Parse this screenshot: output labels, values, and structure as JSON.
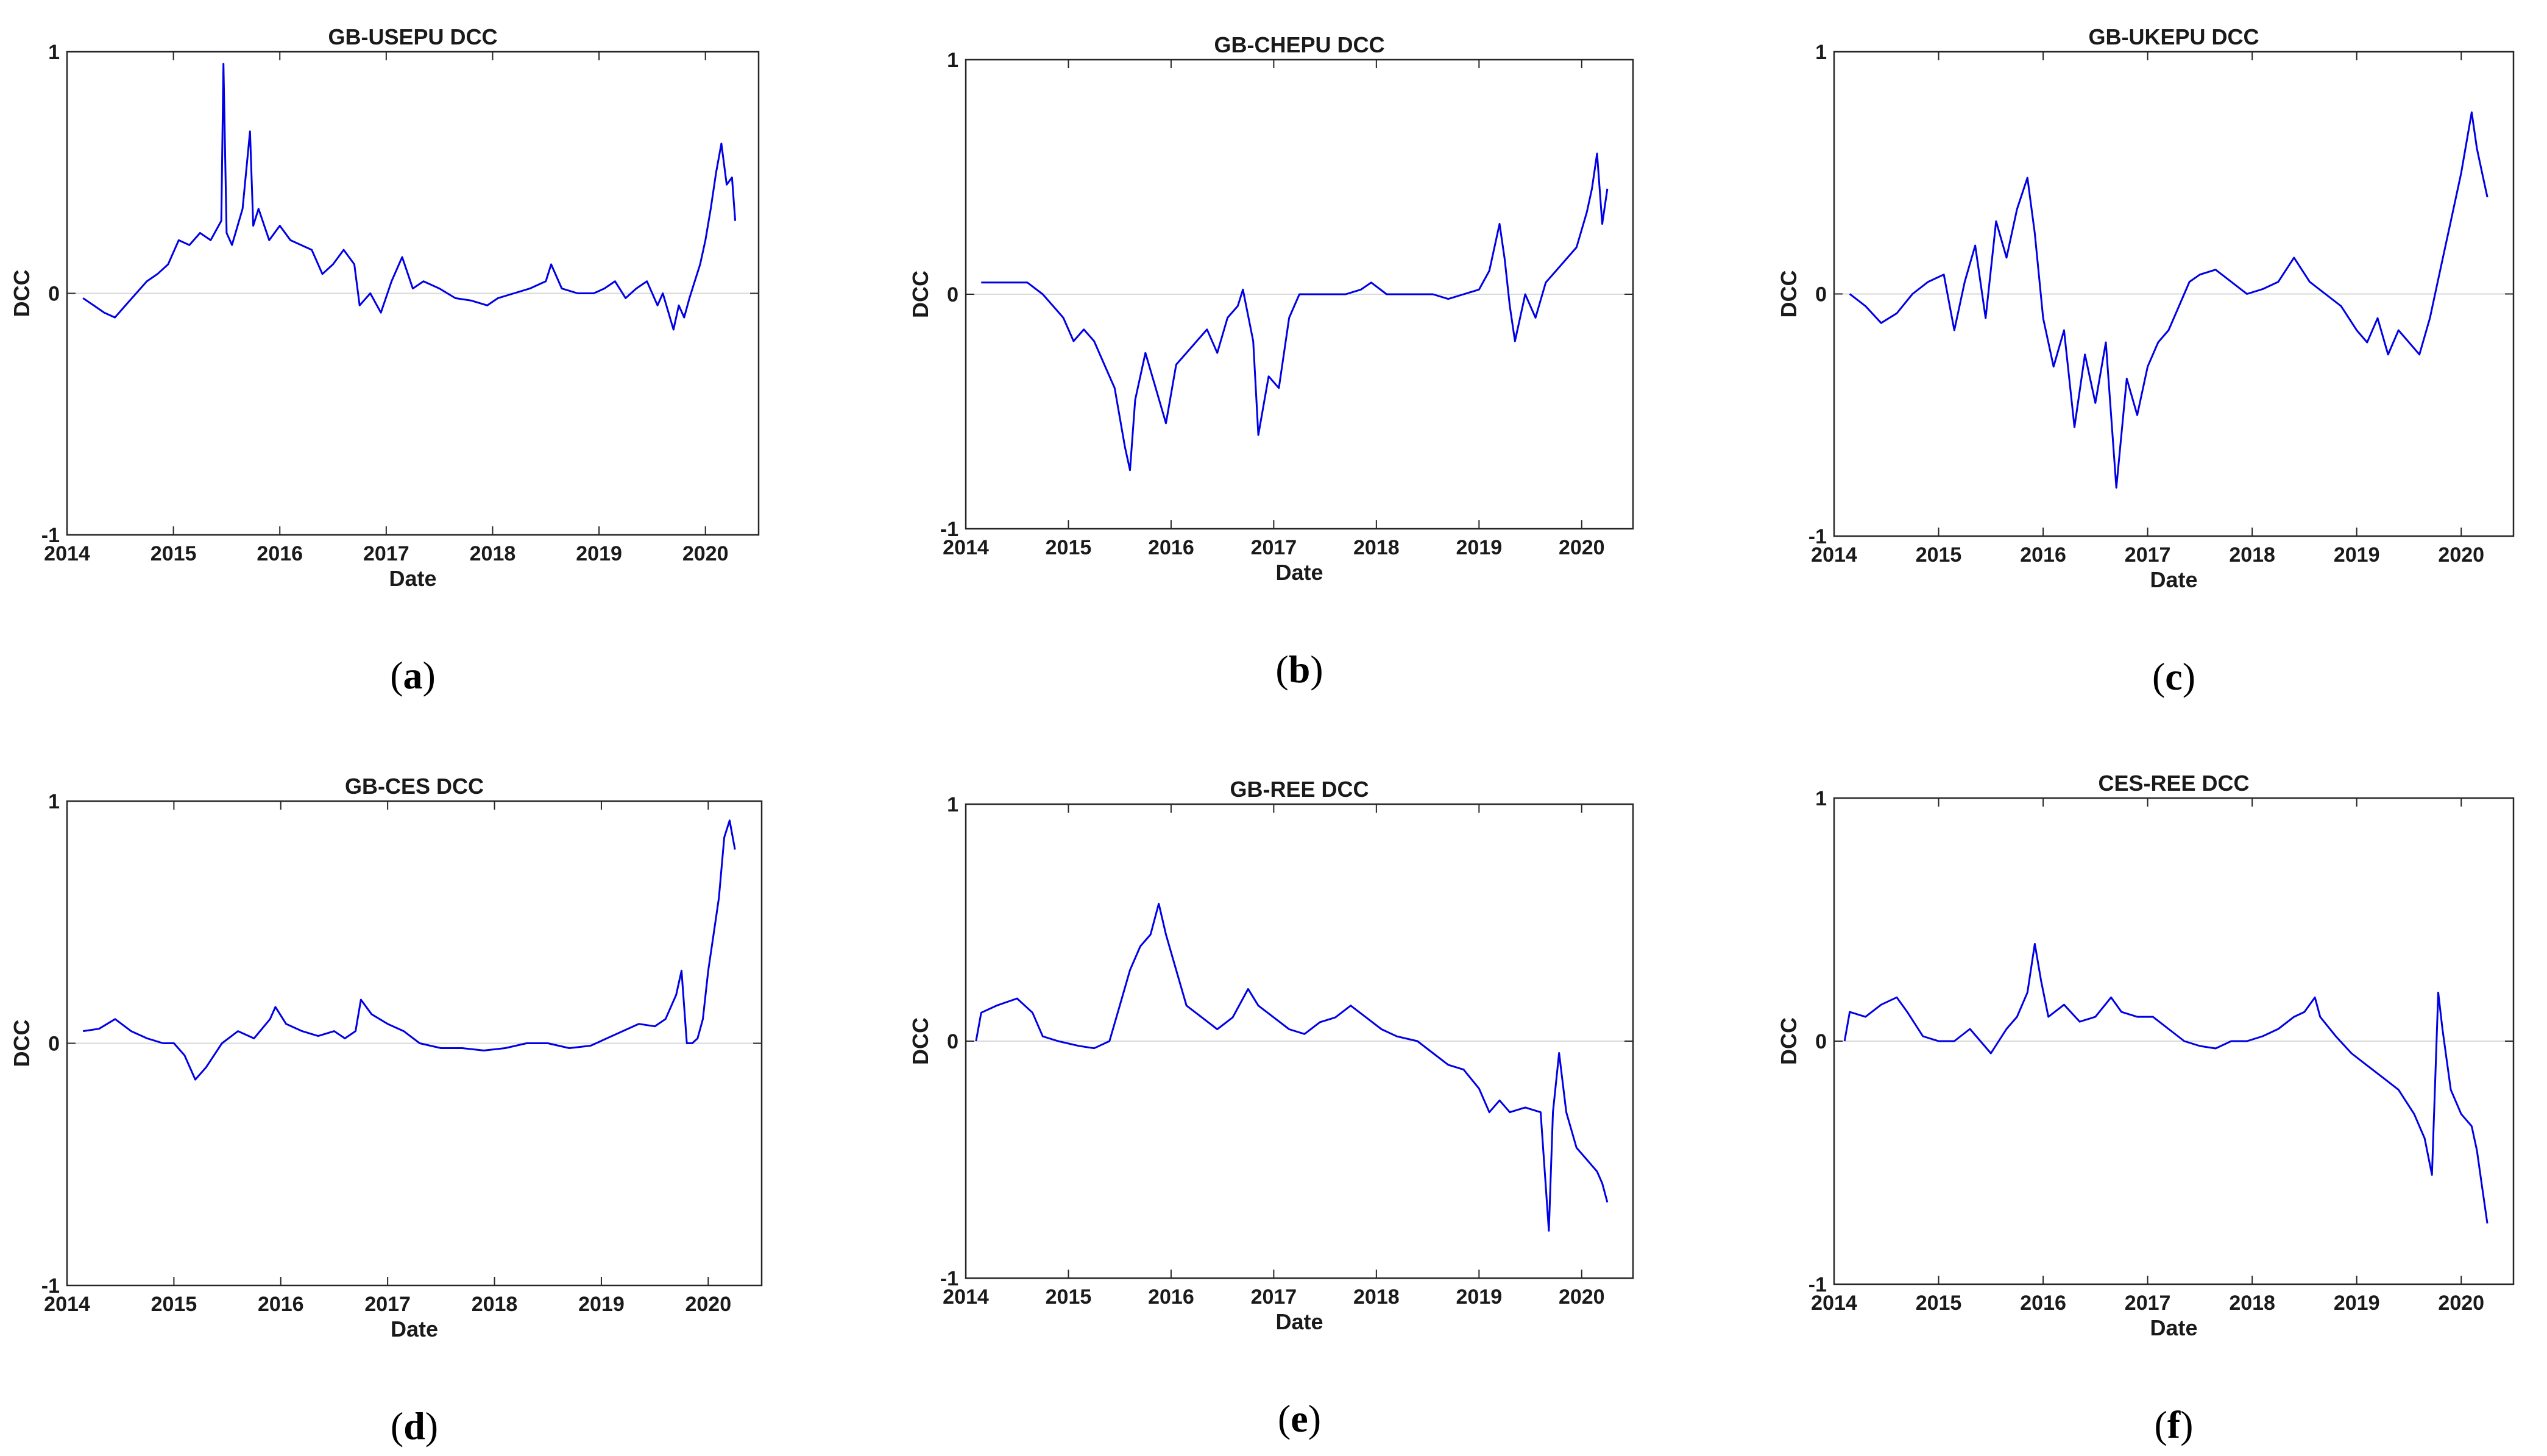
{
  "figure": {
    "line_color": "#0000e6",
    "zero_line_color": "#d9d9d9"
  },
  "chart_data": [
    {
      "type": "line",
      "title": "GB-USEPU DCC",
      "xlabel": "Date",
      "ylabel": "DCC",
      "caption_letter": "a",
      "xlim": [
        2014.0,
        2020.5
      ],
      "ylim": [
        -1,
        1
      ],
      "xticks": [
        2014,
        2015,
        2016,
        2017,
        2018,
        2019,
        2020
      ],
      "yticks": [
        -1,
        0,
        1
      ],
      "series": [
        {
          "x": [
            2014.15,
            2014.25,
            2014.35,
            2014.45,
            2014.55,
            2014.65,
            2014.75,
            2014.85,
            2014.95,
            2015.05,
            2015.15,
            2015.25,
            2015.35,
            2015.45,
            2015.47,
            2015.5,
            2015.55,
            2015.65,
            2015.72,
            2015.75,
            2015.8,
            2015.9,
            2016.0,
            2016.1,
            2016.2,
            2016.3,
            2016.4,
            2016.5,
            2016.6,
            2016.7,
            2016.75,
            2016.85,
            2016.95,
            2017.05,
            2017.15,
            2017.25,
            2017.35,
            2017.5,
            2017.65,
            2017.8,
            2017.95,
            2018.05,
            2018.2,
            2018.35,
            2018.5,
            2018.55,
            2018.65,
            2018.8,
            2018.95,
            2019.05,
            2019.15,
            2019.25,
            2019.35,
            2019.45,
            2019.55,
            2019.6,
            2019.7,
            2019.75,
            2019.8,
            2019.85,
            2019.9,
            2019.95,
            2020.0,
            2020.05,
            2020.1,
            2020.15,
            2020.2,
            2020.25,
            2020.28
          ],
          "y": [
            -0.02,
            -0.05,
            -0.08,
            -0.1,
            -0.05,
            0.0,
            0.05,
            0.08,
            0.12,
            0.22,
            0.2,
            0.25,
            0.22,
            0.3,
            0.95,
            0.25,
            0.2,
            0.35,
            0.67,
            0.28,
            0.35,
            0.22,
            0.28,
            0.22,
            0.2,
            0.18,
            0.08,
            0.12,
            0.18,
            0.12,
            -0.05,
            0.0,
            -0.08,
            0.05,
            0.15,
            0.02,
            0.05,
            0.02,
            -0.02,
            -0.03,
            -0.05,
            -0.02,
            0.0,
            0.02,
            0.05,
            0.12,
            0.02,
            0.0,
            0.0,
            0.02,
            0.05,
            -0.02,
            0.02,
            0.05,
            -0.05,
            0.0,
            -0.15,
            -0.05,
            -0.1,
            -0.02,
            0.05,
            0.12,
            0.22,
            0.35,
            0.5,
            0.62,
            0.45,
            0.48,
            0.3
          ]
        }
      ]
    },
    {
      "type": "line",
      "title": "GB-CHEPU DCC",
      "xlabel": "Date",
      "ylabel": "DCC",
      "caption_letter": "b",
      "xlim": [
        2014.0,
        2020.5
      ],
      "ylim": [
        -1,
        1
      ],
      "xticks": [
        2014,
        2015,
        2016,
        2017,
        2018,
        2019,
        2020
      ],
      "yticks": [
        -1,
        0,
        1
      ],
      "series": [
        {
          "x": [
            2014.15,
            2014.3,
            2014.45,
            2014.6,
            2014.75,
            2014.85,
            2014.95,
            2015.05,
            2015.15,
            2015.25,
            2015.35,
            2015.45,
            2015.55,
            2015.6,
            2015.65,
            2015.75,
            2015.85,
            2015.95,
            2016.05,
            2016.15,
            2016.25,
            2016.35,
            2016.45,
            2016.55,
            2016.65,
            2016.7,
            2016.8,
            2016.85,
            2016.95,
            2017.05,
            2017.15,
            2017.25,
            2017.4,
            2017.55,
            2017.7,
            2017.85,
            2017.95,
            2018.1,
            2018.25,
            2018.4,
            2018.55,
            2018.7,
            2018.85,
            2019.0,
            2019.1,
            2019.2,
            2019.25,
            2019.3,
            2019.35,
            2019.45,
            2019.55,
            2019.65,
            2019.75,
            2019.85,
            2019.95,
            2020.05,
            2020.1,
            2020.15,
            2020.2,
            2020.25
          ],
          "y": [
            0.05,
            0.05,
            0.05,
            0.05,
            0.0,
            -0.05,
            -0.1,
            -0.2,
            -0.15,
            -0.2,
            -0.3,
            -0.4,
            -0.65,
            -0.75,
            -0.45,
            -0.25,
            -0.4,
            -0.55,
            -0.3,
            -0.25,
            -0.2,
            -0.15,
            -0.25,
            -0.1,
            -0.05,
            0.02,
            -0.2,
            -0.6,
            -0.35,
            -0.4,
            -0.1,
            0.0,
            0.0,
            0.0,
            0.0,
            0.02,
            0.05,
            0.0,
            0.0,
            0.0,
            0.0,
            -0.02,
            0.0,
            0.02,
            0.1,
            0.3,
            0.15,
            -0.05,
            -0.2,
            0.0,
            -0.1,
            0.05,
            0.1,
            0.15,
            0.2,
            0.35,
            0.45,
            0.6,
            0.3,
            0.45
          ]
        }
      ]
    },
    {
      "type": "line",
      "title": "GB-UKEPU DCC",
      "xlabel": "Date",
      "ylabel": "DCC",
      "caption_letter": "c",
      "xlim": [
        2014.0,
        2020.5
      ],
      "ylim": [
        -1,
        1
      ],
      "xticks": [
        2014,
        2015,
        2016,
        2017,
        2018,
        2019,
        2020
      ],
      "yticks": [
        -1,
        0,
        1
      ],
      "series": [
        {
          "x": [
            2014.15,
            2014.3,
            2014.45,
            2014.6,
            2014.75,
            2014.9,
            2015.05,
            2015.15,
            2015.25,
            2015.35,
            2015.45,
            2015.55,
            2015.65,
            2015.75,
            2015.85,
            2015.92,
            2016.0,
            2016.1,
            2016.2,
            2016.3,
            2016.4,
            2016.5,
            2016.6,
            2016.7,
            2016.8,
            2016.9,
            2017.0,
            2017.1,
            2017.2,
            2017.3,
            2017.4,
            2017.5,
            2017.65,
            2017.8,
            2017.95,
            2018.1,
            2018.25,
            2018.4,
            2018.55,
            2018.7,
            2018.85,
            2019.0,
            2019.1,
            2019.2,
            2019.3,
            2019.4,
            2019.5,
            2019.6,
            2019.7,
            2019.8,
            2019.9,
            2020.0,
            2020.1,
            2020.15,
            2020.2,
            2020.25
          ],
          "y": [
            0.0,
            -0.05,
            -0.12,
            -0.08,
            0.0,
            0.05,
            0.08,
            -0.15,
            0.05,
            0.2,
            -0.1,
            0.3,
            0.15,
            0.35,
            0.48,
            0.25,
            -0.1,
            -0.3,
            -0.15,
            -0.55,
            -0.25,
            -0.45,
            -0.2,
            -0.8,
            -0.35,
            -0.5,
            -0.3,
            -0.2,
            -0.15,
            -0.05,
            0.05,
            0.08,
            0.1,
            0.05,
            0.0,
            0.02,
            0.05,
            0.15,
            0.05,
            0.0,
            -0.05,
            -0.15,
            -0.2,
            -0.1,
            -0.25,
            -0.15,
            -0.2,
            -0.25,
            -0.1,
            0.1,
            0.3,
            0.5,
            0.75,
            0.6,
            0.5,
            0.4
          ]
        }
      ]
    },
    {
      "type": "line",
      "title": "GB-CES DCC",
      "xlabel": "Date",
      "ylabel": "DCC",
      "caption_letter": "d",
      "xlim": [
        2014.0,
        2020.5
      ],
      "ylim": [
        -1,
        1
      ],
      "xticks": [
        2014,
        2015,
        2016,
        2017,
        2018,
        2019,
        2020
      ],
      "yticks": [
        -1,
        0,
        1
      ],
      "series": [
        {
          "x": [
            2014.15,
            2014.3,
            2014.45,
            2014.6,
            2014.75,
            2014.9,
            2015.0,
            2015.1,
            2015.2,
            2015.3,
            2015.45,
            2015.6,
            2015.75,
            2015.9,
            2015.95,
            2016.05,
            2016.2,
            2016.35,
            2016.5,
            2016.6,
            2016.7,
            2016.75,
            2016.85,
            2017.0,
            2017.15,
            2017.3,
            2017.5,
            2017.7,
            2017.9,
            2018.1,
            2018.3,
            2018.5,
            2018.7,
            2018.9,
            2019.05,
            2019.2,
            2019.35,
            2019.5,
            2019.6,
            2019.7,
            2019.75,
            2019.8,
            2019.85,
            2019.9,
            2019.95,
            2020.0,
            2020.05,
            2020.1,
            2020.15,
            2020.2,
            2020.25
          ],
          "y": [
            0.05,
            0.06,
            0.1,
            0.05,
            0.02,
            0.0,
            0.0,
            -0.05,
            -0.15,
            -0.1,
            0.0,
            0.05,
            0.02,
            0.1,
            0.15,
            0.08,
            0.05,
            0.03,
            0.05,
            0.02,
            0.05,
            0.18,
            0.12,
            0.08,
            0.05,
            0.0,
            -0.02,
            -0.02,
            -0.03,
            -0.02,
            0.0,
            0.0,
            -0.02,
            -0.01,
            0.02,
            0.05,
            0.08,
            0.07,
            0.1,
            0.2,
            0.3,
            0.0,
            0.0,
            0.02,
            0.1,
            0.3,
            0.45,
            0.6,
            0.85,
            0.92,
            0.8
          ]
        }
      ]
    },
    {
      "type": "line",
      "title": "GB-REE DCC",
      "xlabel": "Date",
      "ylabel": "DCC",
      "caption_letter": "e",
      "xlim": [
        2014.0,
        2020.5
      ],
      "ylim": [
        -1,
        1
      ],
      "xticks": [
        2014,
        2015,
        2016,
        2017,
        2018,
        2019,
        2020
      ],
      "yticks": [
        -1,
        0,
        1
      ],
      "series": [
        {
          "x": [
            2014.1,
            2014.15,
            2014.3,
            2014.5,
            2014.65,
            2014.75,
            2014.9,
            2015.1,
            2015.25,
            2015.4,
            2015.5,
            2015.6,
            2015.7,
            2015.8,
            2015.88,
            2015.95,
            2016.05,
            2016.15,
            2016.3,
            2016.45,
            2016.6,
            2016.75,
            2016.85,
            2017.0,
            2017.15,
            2017.3,
            2017.45,
            2017.6,
            2017.75,
            2017.9,
            2018.05,
            2018.2,
            2018.4,
            2018.55,
            2018.7,
            2018.85,
            2019.0,
            2019.1,
            2019.2,
            2019.3,
            2019.45,
            2019.6,
            2019.68,
            2019.72,
            2019.78,
            2019.85,
            2019.95,
            2020.05,
            2020.15,
            2020.2,
            2020.25
          ],
          "y": [
            0.0,
            0.12,
            0.15,
            0.18,
            0.12,
            0.02,
            0.0,
            -0.02,
            -0.03,
            0.0,
            0.15,
            0.3,
            0.4,
            0.45,
            0.58,
            0.45,
            0.3,
            0.15,
            0.1,
            0.05,
            0.1,
            0.22,
            0.15,
            0.1,
            0.05,
            0.03,
            0.08,
            0.1,
            0.15,
            0.1,
            0.05,
            0.02,
            0.0,
            -0.05,
            -0.1,
            -0.12,
            -0.2,
            -0.3,
            -0.25,
            -0.3,
            -0.28,
            -0.3,
            -0.8,
            -0.3,
            -0.05,
            -0.3,
            -0.45,
            -0.5,
            -0.55,
            -0.6,
            -0.68
          ]
        }
      ]
    },
    {
      "type": "line",
      "title": "CES-REE DCC",
      "xlabel": "Date",
      "ylabel": "DCC",
      "caption_letter": "f",
      "xlim": [
        2014.0,
        2020.5
      ],
      "ylim": [
        -1,
        1
      ],
      "xticks": [
        2014,
        2015,
        2016,
        2017,
        2018,
        2019,
        2020
      ],
      "yticks": [
        -1,
        0,
        1
      ],
      "series": [
        {
          "x": [
            2014.1,
            2014.15,
            2014.3,
            2014.45,
            2014.6,
            2014.7,
            2014.85,
            2015.0,
            2015.15,
            2015.3,
            2015.5,
            2015.65,
            2015.75,
            2015.85,
            2015.92,
            2015.98,
            2016.05,
            2016.2,
            2016.35,
            2016.5,
            2016.65,
            2016.75,
            2016.9,
            2017.05,
            2017.2,
            2017.35,
            2017.5,
            2017.65,
            2017.8,
            2017.95,
            2018.1,
            2018.25,
            2018.4,
            2018.5,
            2018.6,
            2018.65,
            2018.8,
            2018.95,
            2019.1,
            2019.25,
            2019.4,
            2019.55,
            2019.65,
            2019.72,
            2019.78,
            2019.82,
            2019.9,
            2020.0,
            2020.1,
            2020.15,
            2020.2,
            2020.25
          ],
          "y": [
            0.0,
            0.12,
            0.1,
            0.15,
            0.18,
            0.12,
            0.02,
            0.0,
            0.0,
            0.05,
            -0.05,
            0.05,
            0.1,
            0.2,
            0.4,
            0.25,
            0.1,
            0.15,
            0.08,
            0.1,
            0.18,
            0.12,
            0.1,
            0.1,
            0.05,
            0.0,
            -0.02,
            -0.03,
            0.0,
            0.0,
            0.02,
            0.05,
            0.1,
            0.12,
            0.18,
            0.1,
            0.02,
            -0.05,
            -0.1,
            -0.15,
            -0.2,
            -0.3,
            -0.4,
            -0.55,
            0.2,
            0.05,
            -0.2,
            -0.3,
            -0.35,
            -0.45,
            -0.6,
            -0.75
          ]
        }
      ]
    }
  ]
}
